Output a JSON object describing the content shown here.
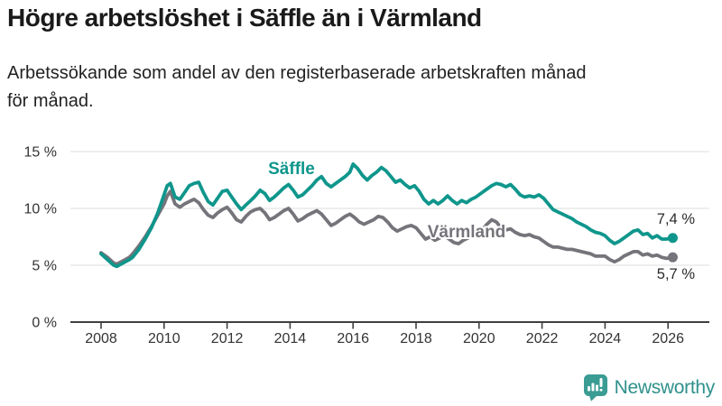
{
  "header": {
    "title": "Högre arbetslöshet i Säffle än i Värmland",
    "subtitle_lines": [
      "Arbetssökande som andel av den registerbaserade arbetskraften månad",
      "för månad."
    ]
  },
  "footer": {
    "brand": "Newsworthy"
  },
  "colors": {
    "saffle": "#0f968c",
    "varmland": "#75747a",
    "grid": "#e4e4e4",
    "axis": "#3f3f3f",
    "axis_text": "#333333",
    "value_text": "#2b2b2b",
    "logo": "#3b9c94",
    "logo_text": "#2f918c"
  },
  "chart_data": {
    "type": "line",
    "unit": "%",
    "grid": "horizontal",
    "xlim": [
      2007.0,
      2027.3
    ],
    "ylim": [
      0,
      15
    ],
    "x_ticks": [
      2008,
      2010,
      2012,
      2014,
      2016,
      2018,
      2020,
      2022,
      2024,
      2026
    ],
    "y_ticks": [
      {
        "value": 0,
        "label": "0 %"
      },
      {
        "value": 5,
        "label": "5 %"
      },
      {
        "value": 10,
        "label": "10 %"
      },
      {
        "value": 15,
        "label": "15 %"
      }
    ],
    "series": [
      {
        "key": "saffle",
        "name": "Säffle",
        "color": "#0f968c",
        "end_label": "7,4 %",
        "end_value": 7.4,
        "end_label_position": "above",
        "points": [
          [
            2008,
            6
          ],
          [
            2008.2,
            5.5
          ],
          [
            2008.4,
            5
          ],
          [
            2008.5,
            4.9
          ],
          [
            2008.7,
            5.2
          ],
          [
            2008.9,
            5.5
          ],
          [
            2009,
            5.7
          ],
          [
            2009.2,
            6.4
          ],
          [
            2009.4,
            7.3
          ],
          [
            2009.6,
            8.3
          ],
          [
            2009.8,
            9.6
          ],
          [
            2010,
            11.2
          ],
          [
            2010.1,
            12
          ],
          [
            2010.2,
            12.2
          ],
          [
            2010.35,
            11
          ],
          [
            2010.5,
            10.8
          ],
          [
            2010.65,
            11.4
          ],
          [
            2010.8,
            12
          ],
          [
            2010.95,
            12.2
          ],
          [
            2011.1,
            12.3
          ],
          [
            2011.25,
            11.4
          ],
          [
            2011.4,
            10.6
          ],
          [
            2011.55,
            10.3
          ],
          [
            2011.7,
            10.9
          ],
          [
            2011.85,
            11.5
          ],
          [
            2012,
            11.6
          ],
          [
            2012.15,
            11
          ],
          [
            2012.3,
            10.4
          ],
          [
            2012.45,
            9.9
          ],
          [
            2012.6,
            10.3
          ],
          [
            2012.75,
            10.7
          ],
          [
            2012.9,
            11.1
          ],
          [
            2013.05,
            11.6
          ],
          [
            2013.2,
            11.3
          ],
          [
            2013.35,
            10.7
          ],
          [
            2013.5,
            11
          ],
          [
            2013.65,
            11.4
          ],
          [
            2013.8,
            11.8
          ],
          [
            2013.95,
            12.1
          ],
          [
            2014.1,
            11.6
          ],
          [
            2014.25,
            11
          ],
          [
            2014.4,
            11.2
          ],
          [
            2014.55,
            11.6
          ],
          [
            2014.7,
            12
          ],
          [
            2014.85,
            12.5
          ],
          [
            2015,
            12.8
          ],
          [
            2015.15,
            12.2
          ],
          [
            2015.3,
            11.9
          ],
          [
            2015.45,
            12.2
          ],
          [
            2015.6,
            12.5
          ],
          [
            2015.75,
            12.8
          ],
          [
            2015.9,
            13.2
          ],
          [
            2016,
            13.9
          ],
          [
            2016.15,
            13.5
          ],
          [
            2016.3,
            12.9
          ],
          [
            2016.45,
            12.5
          ],
          [
            2016.6,
            12.9
          ],
          [
            2016.75,
            13.2
          ],
          [
            2016.9,
            13.6
          ],
          [
            2017.05,
            13.3
          ],
          [
            2017.2,
            12.8
          ],
          [
            2017.35,
            12.3
          ],
          [
            2017.5,
            12.5
          ],
          [
            2017.65,
            12.1
          ],
          [
            2017.8,
            11.8
          ],
          [
            2017.95,
            12
          ],
          [
            2018.1,
            11.5
          ],
          [
            2018.25,
            10.8
          ],
          [
            2018.4,
            10.4
          ],
          [
            2018.55,
            10.7
          ],
          [
            2018.7,
            10.4
          ],
          [
            2018.85,
            10.7
          ],
          [
            2019,
            11.1
          ],
          [
            2019.15,
            10.7
          ],
          [
            2019.3,
            10.4
          ],
          [
            2019.45,
            10.7
          ],
          [
            2019.6,
            10.5
          ],
          [
            2019.75,
            10.8
          ],
          [
            2019.9,
            11
          ],
          [
            2020.05,
            11.3
          ],
          [
            2020.2,
            11.6
          ],
          [
            2020.4,
            12
          ],
          [
            2020.55,
            12.2
          ],
          [
            2020.7,
            12.1
          ],
          [
            2020.85,
            11.9
          ],
          [
            2021,
            12.1
          ],
          [
            2021.15,
            11.7
          ],
          [
            2021.3,
            11.2
          ],
          [
            2021.45,
            11
          ],
          [
            2021.6,
            11.1
          ],
          [
            2021.75,
            11
          ],
          [
            2021.9,
            11.2
          ],
          [
            2022.05,
            10.9
          ],
          [
            2022.2,
            10.4
          ],
          [
            2022.35,
            9.9
          ],
          [
            2022.5,
            9.7
          ],
          [
            2022.65,
            9.5
          ],
          [
            2022.8,
            9.3
          ],
          [
            2022.95,
            9.1
          ],
          [
            2023.1,
            8.8
          ],
          [
            2023.25,
            8.6
          ],
          [
            2023.4,
            8.4
          ],
          [
            2023.55,
            8.1
          ],
          [
            2023.7,
            7.9
          ],
          [
            2023.85,
            7.8
          ],
          [
            2024,
            7.6
          ],
          [
            2024.15,
            7.2
          ],
          [
            2024.3,
            6.9
          ],
          [
            2024.45,
            7.1
          ],
          [
            2024.6,
            7.4
          ],
          [
            2024.75,
            7.7
          ],
          [
            2024.9,
            8
          ],
          [
            2025.05,
            8.1
          ],
          [
            2025.2,
            7.7
          ],
          [
            2025.35,
            7.8
          ],
          [
            2025.5,
            7.4
          ],
          [
            2025.65,
            7.6
          ],
          [
            2025.8,
            7.3
          ],
          [
            2025.95,
            7.3
          ],
          [
            2026.15,
            7.4
          ]
        ]
      },
      {
        "key": "varmland",
        "name": "Värmland",
        "color": "#75747a",
        "end_label": "5,7 %",
        "end_value": 5.7,
        "end_label_position": "below",
        "points": [
          [
            2008,
            6.1
          ],
          [
            2008.2,
            5.7
          ],
          [
            2008.4,
            5.2
          ],
          [
            2008.5,
            5.1
          ],
          [
            2008.7,
            5.4
          ],
          [
            2008.9,
            5.7
          ],
          [
            2009,
            6
          ],
          [
            2009.2,
            6.7
          ],
          [
            2009.4,
            7.5
          ],
          [
            2009.6,
            8.4
          ],
          [
            2009.8,
            9.4
          ],
          [
            2010,
            10.4
          ],
          [
            2010.1,
            11.1
          ],
          [
            2010.2,
            11.5
          ],
          [
            2010.35,
            10.4
          ],
          [
            2010.5,
            10.1
          ],
          [
            2010.65,
            10.4
          ],
          [
            2010.8,
            10.6
          ],
          [
            2010.95,
            10.8
          ],
          [
            2011.1,
            10.5
          ],
          [
            2011.25,
            9.9
          ],
          [
            2011.4,
            9.4
          ],
          [
            2011.55,
            9.2
          ],
          [
            2011.7,
            9.6
          ],
          [
            2011.85,
            9.9
          ],
          [
            2012,
            10.1
          ],
          [
            2012.15,
            9.6
          ],
          [
            2012.3,
            9
          ],
          [
            2012.45,
            8.8
          ],
          [
            2012.6,
            9.3
          ],
          [
            2012.75,
            9.7
          ],
          [
            2012.9,
            9.9
          ],
          [
            2013.05,
            10
          ],
          [
            2013.2,
            9.6
          ],
          [
            2013.35,
            9
          ],
          [
            2013.5,
            9.2
          ],
          [
            2013.65,
            9.5
          ],
          [
            2013.8,
            9.8
          ],
          [
            2013.95,
            10
          ],
          [
            2014.1,
            9.5
          ],
          [
            2014.25,
            8.9
          ],
          [
            2014.4,
            9.1
          ],
          [
            2014.55,
            9.4
          ],
          [
            2014.7,
            9.6
          ],
          [
            2014.85,
            9.8
          ],
          [
            2015,
            9.5
          ],
          [
            2015.15,
            9
          ],
          [
            2015.3,
            8.5
          ],
          [
            2015.45,
            8.7
          ],
          [
            2015.6,
            9
          ],
          [
            2015.75,
            9.3
          ],
          [
            2015.9,
            9.5
          ],
          [
            2016.05,
            9.2
          ],
          [
            2016.2,
            8.8
          ],
          [
            2016.35,
            8.6
          ],
          [
            2016.5,
            8.8
          ],
          [
            2016.65,
            9
          ],
          [
            2016.8,
            9.3
          ],
          [
            2016.95,
            9.2
          ],
          [
            2017.1,
            8.8
          ],
          [
            2017.25,
            8.3
          ],
          [
            2017.4,
            8
          ],
          [
            2017.55,
            8.2
          ],
          [
            2017.7,
            8.4
          ],
          [
            2017.85,
            8.5
          ],
          [
            2018,
            8.3
          ],
          [
            2018.15,
            7.8
          ],
          [
            2018.3,
            7.3
          ],
          [
            2018.45,
            7.5
          ],
          [
            2018.6,
            7.2
          ],
          [
            2018.75,
            7.4
          ],
          [
            2018.9,
            7.6
          ],
          [
            2019.05,
            7.3
          ],
          [
            2019.2,
            7
          ],
          [
            2019.35,
            6.9
          ],
          [
            2019.5,
            7.2
          ],
          [
            2019.65,
            7.4
          ],
          [
            2019.8,
            7.6
          ],
          [
            2019.95,
            7.7
          ],
          [
            2020.1,
            8.1
          ],
          [
            2020.25,
            8.6
          ],
          [
            2020.4,
            9
          ],
          [
            2020.55,
            8.8
          ],
          [
            2020.7,
            8.3
          ],
          [
            2020.85,
            8.1
          ],
          [
            2021,
            8.2
          ],
          [
            2021.15,
            7.9
          ],
          [
            2021.3,
            7.7
          ],
          [
            2021.45,
            7.6
          ],
          [
            2021.6,
            7.7
          ],
          [
            2021.75,
            7.5
          ],
          [
            2021.9,
            7.4
          ],
          [
            2022.05,
            7.1
          ],
          [
            2022.2,
            6.8
          ],
          [
            2022.35,
            6.6
          ],
          [
            2022.5,
            6.6
          ],
          [
            2022.65,
            6.5
          ],
          [
            2022.8,
            6.4
          ],
          [
            2022.95,
            6.4
          ],
          [
            2023.1,
            6.3
          ],
          [
            2023.25,
            6.2
          ],
          [
            2023.4,
            6.1
          ],
          [
            2023.55,
            6
          ],
          [
            2023.7,
            5.8
          ],
          [
            2023.85,
            5.8
          ],
          [
            2024,
            5.8
          ],
          [
            2024.15,
            5.5
          ],
          [
            2024.3,
            5.3
          ],
          [
            2024.45,
            5.5
          ],
          [
            2024.6,
            5.8
          ],
          [
            2024.75,
            6
          ],
          [
            2024.9,
            6.2
          ],
          [
            2025.05,
            6.2
          ],
          [
            2025.2,
            5.9
          ],
          [
            2025.35,
            6
          ],
          [
            2025.5,
            5.8
          ],
          [
            2025.65,
            5.9
          ],
          [
            2025.8,
            5.7
          ],
          [
            2025.95,
            5.6
          ],
          [
            2026.15,
            5.7
          ]
        ]
      }
    ]
  }
}
